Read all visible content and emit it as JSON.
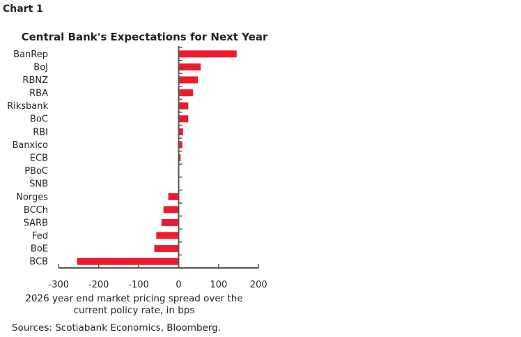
{
  "chart_label": "Chart 1",
  "source": "Sources: Scotiabank Economics, Bloomberg.",
  "chart_data": {
    "type": "bar",
    "orientation": "horizontal",
    "title": "Central Bank's Expectations for Next Year",
    "xlabel": "2026 year end market pricing spread over the current policy rate, in bps",
    "xlabel_lines": [
      "2026 year end market pricing spread over the",
      "current policy rate, in bps"
    ],
    "ylabel": "",
    "categories": [
      "BanRep",
      "BoJ",
      "RBNZ",
      "RBA",
      "Riksbank",
      "BoC",
      "RBI",
      "Banxico",
      "ECB",
      "PBoC",
      "SNB",
      "Norges",
      "BCCh",
      "SARB",
      "Fed",
      "BoE",
      "BCB"
    ],
    "values": [
      145,
      55,
      48,
      36,
      24,
      24,
      11,
      9,
      5,
      0,
      0,
      -26,
      -38,
      -43,
      -56,
      -61,
      -254
    ],
    "xlim": [
      -300,
      200
    ],
    "xticks": [
      -300,
      -200,
      -100,
      0,
      100,
      200
    ],
    "grid": false,
    "legend": "none",
    "bar_color": "#ED1B2F"
  }
}
